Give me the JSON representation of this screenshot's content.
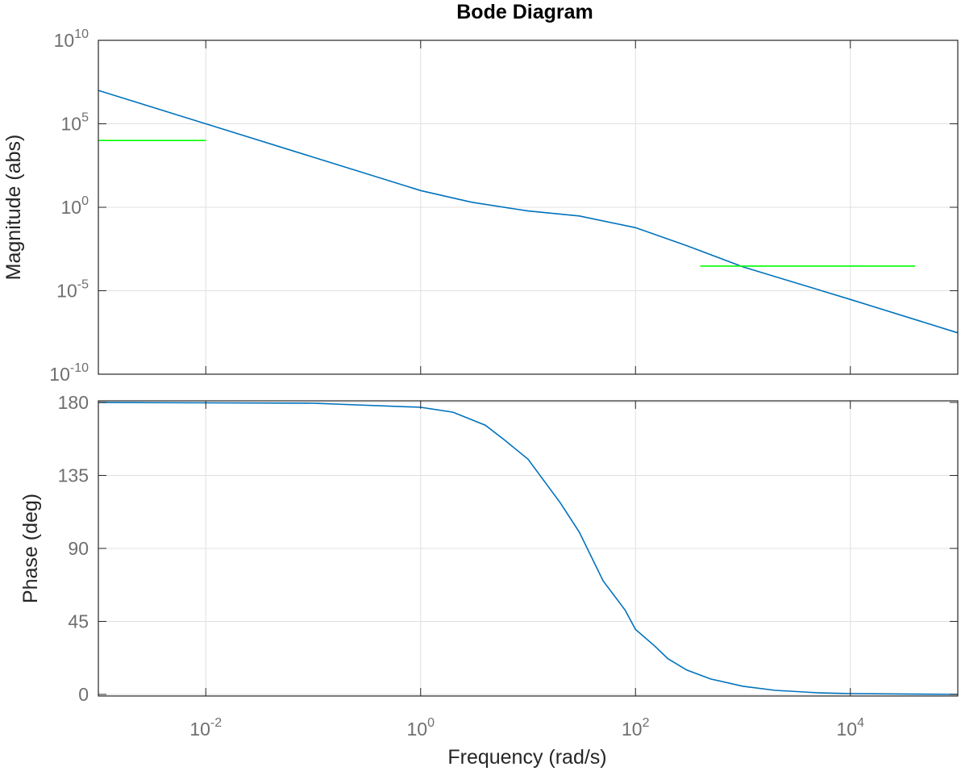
{
  "chart_data": {
    "type": "line",
    "title": "Bode Diagram",
    "xlabel": "Frequency  (rad/s)",
    "x_scale": "log",
    "x_range": [
      0.001,
      100000
    ],
    "x_ticks": [
      {
        "base": "10",
        "exp": "-2",
        "value": 0.01
      },
      {
        "base": "10",
        "exp": "0",
        "value": 1
      },
      {
        "base": "10",
        "exp": "2",
        "value": 100
      },
      {
        "base": "10",
        "exp": "4",
        "value": 10000
      }
    ],
    "grid": true,
    "colors": {
      "response": "#0072bd",
      "reference": "#00ff00",
      "axes": "#262626",
      "grid": "#e0e0e0"
    },
    "panels": [
      {
        "id": "magnitude",
        "ylabel": "Magnitude (abs)",
        "y_scale": "log",
        "y_range": [
          1e-10,
          10000000000.0
        ],
        "y_ticks": [
          {
            "base": "10",
            "exp": "10",
            "value": 10000000000.0
          },
          {
            "base": "10",
            "exp": "5",
            "value": 100000.0
          },
          {
            "base": "10",
            "exp": "0",
            "value": 1
          },
          {
            "base": "10",
            "exp": "-5",
            "value": 1e-05
          },
          {
            "base": "10",
            "exp": "-10",
            "value": 1e-10
          }
        ],
        "series": [
          {
            "role": "response",
            "x": [
              0.001,
              0.01,
              0.1,
              1,
              3,
              10,
              30,
              100,
              300,
              1000,
              10000,
              100000
            ],
            "y": [
              10000000.0,
              100000.0,
              1000.0,
              10,
              2,
              0.6,
              0.3,
              0.06,
              0.005,
              0.00027,
              3e-06,
              3e-08
            ]
          },
          {
            "role": "reference",
            "x": [
              0.001,
              0.01
            ],
            "y": [
              10000,
              10000
            ]
          },
          {
            "role": "reference",
            "x": [
              400,
              40000
            ],
            "y": [
              0.0003,
              0.0003
            ]
          }
        ]
      },
      {
        "id": "phase",
        "ylabel": "Phase (deg)",
        "y_scale": "linear",
        "y_range": [
          -1,
          181
        ],
        "y_ticks": [
          {
            "base": "180",
            "exp": "",
            "value": 180
          },
          {
            "base": "135",
            "exp": "",
            "value": 135
          },
          {
            "base": "90",
            "exp": "",
            "value": 90
          },
          {
            "base": "45",
            "exp": "",
            "value": 45
          },
          {
            "base": "0",
            "exp": "",
            "value": 0
          }
        ],
        "series": [
          {
            "role": "response",
            "x": [
              0.001,
              0.1,
              1,
              2,
              4,
              6,
              10,
              20,
              30,
              50,
              80,
              100,
              150,
              200,
              300,
              500,
              1000,
              2000,
              5000,
              10000,
              100000
            ],
            "y": [
              180,
              179.5,
              177,
              174,
              166,
              157,
              145,
              118,
              100,
              70,
              52,
              40,
              30,
              22,
              15,
              9.5,
              5,
              2.5,
              1,
              0.5,
              0
            ]
          }
        ]
      }
    ]
  }
}
